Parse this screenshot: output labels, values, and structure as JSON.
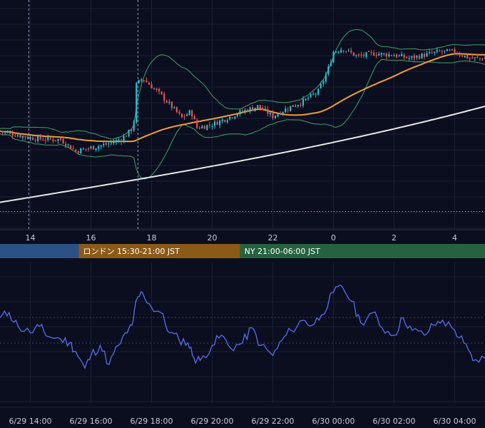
{
  "chart_data": [
    {
      "type": "candlestick",
      "panel": "price",
      "time_axis": {
        "start_hour": 13.0,
        "end_hour": 29.0,
        "ticks": [
          {
            "hour": 14,
            "label": "14"
          },
          {
            "hour": 16,
            "label": "16"
          },
          {
            "hour": 18,
            "label": "18"
          },
          {
            "hour": 20,
            "label": "20"
          },
          {
            "hour": 22,
            "label": "22"
          },
          {
            "hour": 24,
            "label": "0"
          },
          {
            "hour": 26,
            "label": "2"
          },
          {
            "hour": 28,
            "label": "4"
          }
        ]
      },
      "price_range": [
        0,
        100
      ],
      "close_anchors": [
        [
          13.0,
          38
        ],
        [
          13.5,
          36
        ],
        [
          14.0,
          34
        ],
        [
          14.5,
          33
        ],
        [
          15.0,
          33
        ],
        [
          15.5,
          26
        ],
        [
          16.0,
          28
        ],
        [
          16.5,
          30
        ],
        [
          17.0,
          33
        ],
        [
          17.4,
          40
        ],
        [
          17.5,
          66
        ],
        [
          17.7,
          70
        ],
        [
          18.0,
          65
        ],
        [
          18.3,
          60
        ],
        [
          18.6,
          54
        ],
        [
          19.0,
          46
        ],
        [
          19.3,
          50
        ],
        [
          19.5,
          40
        ],
        [
          20.0,
          42
        ],
        [
          20.5,
          46
        ],
        [
          21.0,
          50
        ],
        [
          21.5,
          53
        ],
        [
          22.0,
          47
        ],
        [
          22.5,
          52
        ],
        [
          23.0,
          56
        ],
        [
          23.5,
          62
        ],
        [
          23.8,
          74
        ],
        [
          24.0,
          86
        ],
        [
          24.3,
          88
        ],
        [
          24.8,
          83
        ],
        [
          25.3,
          85
        ],
        [
          26.0,
          84
        ],
        [
          26.5,
          82
        ],
        [
          27.0,
          84
        ],
        [
          27.5,
          86
        ],
        [
          28.0,
          86
        ],
        [
          28.5,
          82
        ],
        [
          29.0,
          82
        ]
      ],
      "candle_interval_minutes": 5,
      "overlays": [
        {
          "kind": "bollinger",
          "color": "#3fa36b"
        },
        {
          "kind": "moving_average",
          "color": "#f0a030"
        },
        {
          "kind": "moving_average",
          "color": "#e8e8e8"
        }
      ],
      "colors": {
        "up": "#26c6da",
        "down": "#ef5350"
      }
    },
    {
      "type": "line",
      "panel": "oscillator",
      "color": "#5b6ef0",
      "points": [
        [
          13.0,
          62
        ],
        [
          13.3,
          66
        ],
        [
          13.6,
          55
        ],
        [
          14.0,
          50
        ],
        [
          14.3,
          55
        ],
        [
          14.6,
          47
        ],
        [
          15.0,
          45
        ],
        [
          15.3,
          42
        ],
        [
          15.5,
          35
        ],
        [
          15.8,
          22
        ],
        [
          16.0,
          32
        ],
        [
          16.3,
          40
        ],
        [
          16.6,
          25
        ],
        [
          16.9,
          40
        ],
        [
          17.2,
          50
        ],
        [
          17.4,
          60
        ],
        [
          17.5,
          76
        ],
        [
          17.7,
          82
        ],
        [
          18.0,
          70
        ],
        [
          18.3,
          66
        ],
        [
          18.6,
          50
        ],
        [
          18.9,
          45
        ],
        [
          19.2,
          42
        ],
        [
          19.4,
          30
        ],
        [
          19.6,
          28
        ],
        [
          20.0,
          40
        ],
        [
          20.3,
          48
        ],
        [
          20.6,
          38
        ],
        [
          21.0,
          42
        ],
        [
          21.3,
          54
        ],
        [
          21.6,
          40
        ],
        [
          22.0,
          32
        ],
        [
          22.3,
          44
        ],
        [
          22.6,
          52
        ],
        [
          23.0,
          60
        ],
        [
          23.3,
          56
        ],
        [
          23.6,
          64
        ],
        [
          24.0,
          82
        ],
        [
          24.3,
          86
        ],
        [
          24.6,
          75
        ],
        [
          24.9,
          58
        ],
        [
          25.3,
          66
        ],
        [
          25.6,
          54
        ],
        [
          26.0,
          48
        ],
        [
          26.3,
          62
        ],
        [
          26.6,
          52
        ],
        [
          27.0,
          48
        ],
        [
          27.3,
          56
        ],
        [
          27.6,
          60
        ],
        [
          28.0,
          52
        ],
        [
          28.3,
          42
        ],
        [
          28.6,
          28
        ],
        [
          29.0,
          30
        ]
      ],
      "value_range": [
        0,
        100
      ]
    }
  ],
  "sessions": [
    {
      "label": "",
      "start_hour": 13.0,
      "end_hour": 15.6,
      "color": "#2c5283"
    },
    {
      "label": "ロンドン 15:30-21:00 JST",
      "start_hour": 15.6,
      "end_hour": 20.92,
      "color": "#8b5a17"
    },
    {
      "label": "NY 21:00-06:00 JST",
      "start_hour": 20.92,
      "end_hour": 29.0,
      "color": "#25633f"
    }
  ],
  "date_axis": [
    {
      "hour": 14,
      "label": "6/29 14:00"
    },
    {
      "hour": 16,
      "label": "6/29 16:00"
    },
    {
      "hour": 18,
      "label": "6/29 18:00"
    },
    {
      "hour": 20,
      "label": "6/29 20:00"
    },
    {
      "hour": 22,
      "label": "6/29 22:00"
    },
    {
      "hour": 24,
      "label": "6/30 00:00"
    },
    {
      "hour": 26,
      "label": "6/30 02:00"
    },
    {
      "hour": 28,
      "label": "6/30 04:00"
    }
  ],
  "markers": {
    "dashed_vlines": [
      13.95,
      17.55
    ],
    "dotted_hline_level": 1.5
  }
}
